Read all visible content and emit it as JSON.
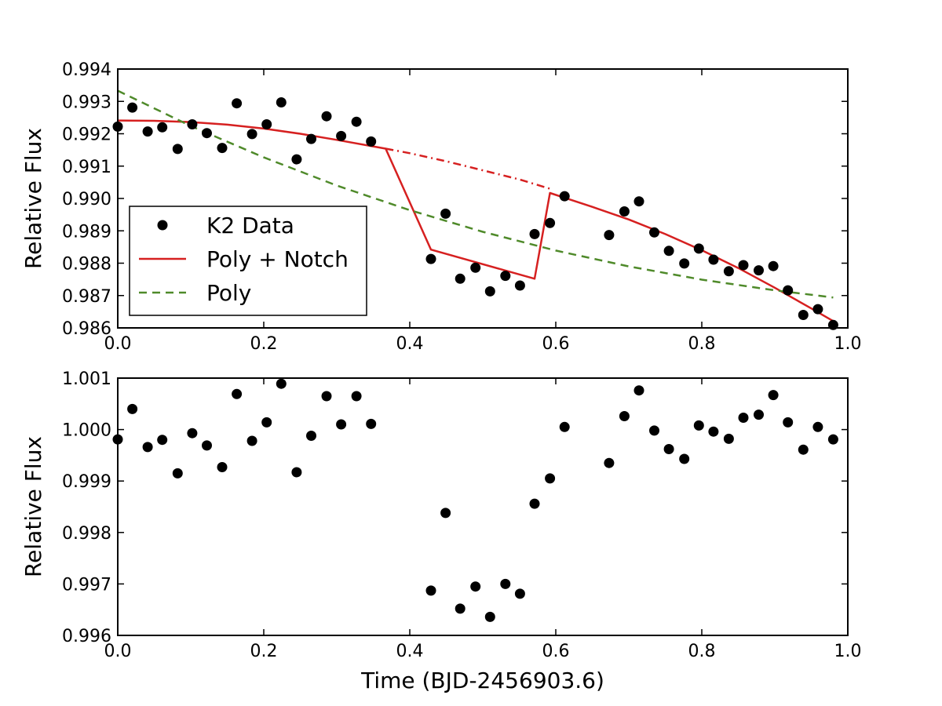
{
  "figure": {
    "xlabel": "Time (BJD-2456903.6)"
  },
  "chart_data": [
    {
      "type": "scatter",
      "ylabel": "Relative Flux",
      "xlim": [
        0.0,
        1.0
      ],
      "ylim": [
        0.986,
        0.994
      ],
      "x_ticks": [
        "0.0",
        "0.2",
        "0.4",
        "0.6",
        "0.8",
        "1.0"
      ],
      "y_ticks": [
        "0.986",
        "0.987",
        "0.988",
        "0.989",
        "0.990",
        "0.991",
        "0.992",
        "0.993",
        "0.994"
      ],
      "grid": false,
      "legend_position": "center-left",
      "colors": {
        "data": "#000000",
        "notch": "#d62020",
        "poly": "#4f8a2a"
      },
      "series": [
        {
          "name": "K2 Data",
          "kind": "points",
          "x": [
            0.0,
            0.02,
            0.041,
            0.061,
            0.082,
            0.102,
            0.122,
            0.143,
            0.163,
            0.184,
            0.204,
            0.224,
            0.245,
            0.265,
            0.286,
            0.306,
            0.327,
            0.347,
            0.429,
            0.449,
            0.469,
            0.49,
            0.51,
            0.531,
            0.551,
            0.571,
            0.592,
            0.612,
            0.673,
            0.694,
            0.714,
            0.735,
            0.755,
            0.776,
            0.796,
            0.816,
            0.837,
            0.857,
            0.878,
            0.898,
            0.918,
            0.939,
            0.959,
            0.98
          ],
          "y": [
            0.99222,
            0.99281,
            0.99207,
            0.9922,
            0.99153,
            0.99229,
            0.99202,
            0.99156,
            0.99294,
            0.99199,
            0.99229,
            0.99297,
            0.99121,
            0.99184,
            0.99254,
            0.99193,
            0.99237,
            0.99176,
            0.98813,
            0.98953,
            0.98752,
            0.98786,
            0.98713,
            0.98761,
            0.98731,
            0.9889,
            0.98924,
            0.99007,
            0.98887,
            0.9896,
            0.98991,
            0.98895,
            0.98838,
            0.98799,
            0.98845,
            0.98811,
            0.98775,
            0.98794,
            0.98778,
            0.98791,
            0.98716,
            0.9864,
            0.98658,
            0.98609
          ]
        },
        {
          "name": "Poly + Notch",
          "kind": "line",
          "x": [
            0.0,
            0.05,
            0.1,
            0.15,
            0.2,
            0.25,
            0.3,
            0.367,
            0.429,
            0.571,
            0.592,
            0.65,
            0.7,
            0.75,
            0.8,
            0.85,
            0.9,
            0.95,
            0.98
          ],
          "y": [
            0.99241,
            0.9924,
            0.99236,
            0.99228,
            0.99216,
            0.992,
            0.99181,
            0.99154,
            0.98842,
            0.98752,
            0.99017,
            0.98974,
            0.98935,
            0.9889,
            0.9884,
            0.98785,
            0.98724,
            0.9866,
            0.98621
          ]
        },
        {
          "name": "",
          "kind": "dashdot",
          "x": [
            0.367,
            0.4,
            0.45,
            0.5,
            0.55,
            0.592
          ],
          "y": [
            0.99154,
            0.9914,
            0.99115,
            0.99087,
            0.99059,
            0.9903
          ]
        },
        {
          "name": "Poly",
          "kind": "dashed",
          "x": [
            0.0,
            0.1,
            0.2,
            0.3,
            0.4,
            0.5,
            0.6,
            0.7,
            0.8,
            0.9,
            0.98
          ],
          "y": [
            0.99333,
            0.99224,
            0.99127,
            0.9904,
            0.98964,
            0.98897,
            0.98839,
            0.9879,
            0.98749,
            0.98716,
            0.98694
          ]
        }
      ]
    },
    {
      "type": "scatter",
      "ylabel": "Relative Flux",
      "xlim": [
        0.0,
        1.0
      ],
      "ylim": [
        0.996,
        1.001
      ],
      "x_ticks": [
        "0.0",
        "0.2",
        "0.4",
        "0.6",
        "0.8",
        "1.0"
      ],
      "y_ticks": [
        "0.996",
        "0.997",
        "0.998",
        "0.999",
        "1.000",
        "1.001"
      ],
      "grid": false,
      "colors": {
        "data": "#000000"
      },
      "series": [
        {
          "kind": "points",
          "x": [
            0.0,
            0.02,
            0.041,
            0.061,
            0.082,
            0.102,
            0.122,
            0.143,
            0.163,
            0.184,
            0.204,
            0.224,
            0.245,
            0.265,
            0.286,
            0.306,
            0.327,
            0.347,
            0.429,
            0.449,
            0.469,
            0.49,
            0.51,
            0.531,
            0.551,
            0.571,
            0.592,
            0.612,
            0.673,
            0.694,
            0.714,
            0.735,
            0.755,
            0.776,
            0.796,
            0.816,
            0.837,
            0.857,
            0.878,
            0.898,
            0.918,
            0.939,
            0.959,
            0.98
          ],
          "y": [
            0.99981,
            1.0004,
            0.99966,
            0.9998,
            0.99915,
            0.99993,
            0.99969,
            0.99927,
            1.00069,
            0.99978,
            1.00014,
            1.00089,
            0.99917,
            0.99988,
            1.00065,
            1.0001,
            1.00065,
            1.00011,
            0.99687,
            0.99838,
            0.99652,
            0.99695,
            0.99636,
            0.997,
            0.99681,
            0.99856,
            0.99905,
            1.00005,
            0.99935,
            1.00026,
            1.00076,
            0.99998,
            0.99962,
            0.99943,
            1.00008,
            0.99996,
            0.99982,
            1.00023,
            1.00029,
            1.00067,
            1.00014,
            0.99961,
            1.00005,
            0.99981
          ]
        }
      ]
    }
  ]
}
